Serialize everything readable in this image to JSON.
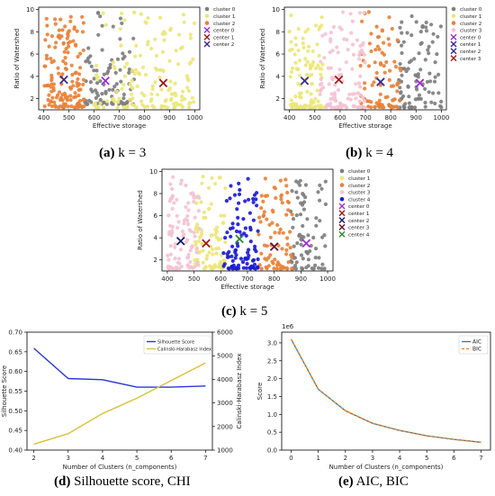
{
  "panels": {
    "a": {
      "letter": "(a)",
      "text": "k = 3"
    },
    "b": {
      "letter": "(b)",
      "text": "k = 4"
    },
    "c": {
      "letter": "(c)",
      "text": "k = 5"
    },
    "d": {
      "letter": "(d)",
      "text": "Silhouette score, CHI"
    },
    "e": {
      "letter": "(e)",
      "text": "AIC, BIC"
    }
  },
  "chart_data": [
    {
      "id": "a",
      "type": "scatter",
      "xlabel": "Effective storage",
      "ylabel": "Ratio of Watershed",
      "xlim": [
        380,
        1020
      ],
      "ylim": [
        1,
        10.2
      ],
      "xticks": [
        400,
        500,
        600,
        700,
        800,
        900,
        1000
      ],
      "yticks": [
        2,
        4,
        6,
        8,
        10
      ],
      "legend_position": "top-right",
      "clusters": [
        {
          "name": "cluster 0",
          "color": "#7f7f7f",
          "x_range": [
            560,
            760
          ],
          "y_range": [
            1.5,
            9.8
          ],
          "count": 95
        },
        {
          "name": "cluster 1",
          "color": "#ece67a",
          "x_range": [
            600,
            1000
          ],
          "y_range": [
            1.2,
            9.8
          ],
          "count": 150
        },
        {
          "name": "cluster 2",
          "color": "#e8823a",
          "x_range": [
            400,
            560
          ],
          "y_range": [
            1.2,
            9.5
          ],
          "count": 150
        }
      ],
      "centers": [
        {
          "name": "center 0",
          "color": "#9b30ce",
          "x": 645,
          "y": 3.6
        },
        {
          "name": "center 1",
          "color": "#9b1c1c",
          "x": 875,
          "y": 3.4
        },
        {
          "name": "center 2",
          "color": "#3a2a8a",
          "x": 480,
          "y": 3.7
        }
      ]
    },
    {
      "id": "b",
      "type": "scatter",
      "xlabel": "Effective storage",
      "ylabel": "Ratio of Watershed",
      "xlim": [
        380,
        1020
      ],
      "ylim": [
        1,
        10.2
      ],
      "xticks": [
        400,
        500,
        600,
        700,
        800,
        900,
        1000
      ],
      "yticks": [
        2,
        4,
        6,
        8,
        10
      ],
      "legend_position": "top-right",
      "clusters": [
        {
          "name": "cluster 0",
          "color": "#7f7f7f",
          "x_range": [
            830,
            1000
          ],
          "y_range": [
            1.2,
            9.5
          ],
          "count": 95
        },
        {
          "name": "cluster 1",
          "color": "#ece67a",
          "x_range": [
            400,
            540
          ],
          "y_range": [
            1.2,
            9.5
          ],
          "count": 110
        },
        {
          "name": "cluster 2",
          "color": "#e8823a",
          "x_range": [
            680,
            840
          ],
          "y_range": [
            1.2,
            9.8
          ],
          "count": 90
        },
        {
          "name": "cluster 3",
          "color": "#f4c2d4",
          "x_range": [
            520,
            700
          ],
          "y_range": [
            1.2,
            9.8
          ],
          "count": 110
        }
      ],
      "centers": [
        {
          "name": "center 0",
          "color": "#9b30ce",
          "x": 915,
          "y": 3.4
        },
        {
          "name": "center 1",
          "color": "#3a2a8a",
          "x": 460,
          "y": 3.6
        },
        {
          "name": "center 2",
          "color": "#3a2a8a",
          "x": 760,
          "y": 3.5
        },
        {
          "name": "center 3",
          "color": "#9b1c1c",
          "x": 595,
          "y": 3.7
        }
      ]
    },
    {
      "id": "c",
      "type": "scatter",
      "xlabel": "Effective storage",
      "ylabel": "Ratio of Watershed",
      "xlim": [
        380,
        1020
      ],
      "ylim": [
        1,
        10.2
      ],
      "xticks": [
        400,
        500,
        600,
        700,
        800,
        900,
        1000
      ],
      "yticks": [
        2,
        4,
        6,
        8,
        10
      ],
      "legend_position": "top-right",
      "clusters": [
        {
          "name": "cluster 0",
          "color": "#7f7f7f",
          "x_range": [
            860,
            1000
          ],
          "y_range": [
            1.2,
            9.2
          ],
          "count": 80
        },
        {
          "name": "cluster 1",
          "color": "#ece67a",
          "x_range": [
            500,
            620
          ],
          "y_range": [
            1.2,
            9.7
          ],
          "count": 90
        },
        {
          "name": "cluster 2",
          "color": "#e8823a",
          "x_range": [
            740,
            870
          ],
          "y_range": [
            1.2,
            9.8
          ],
          "count": 80
        },
        {
          "name": "cluster 3",
          "color": "#f4c2d4",
          "x_range": [
            400,
            520
          ],
          "y_range": [
            1.2,
            9.5
          ],
          "count": 95
        },
        {
          "name": "cluster 4",
          "color": "#1c1cd2",
          "x_range": [
            610,
            740
          ],
          "y_range": [
            1.2,
            9.5
          ],
          "count": 95
        }
      ],
      "centers": [
        {
          "name": "center 0",
          "color": "#9b30ce",
          "x": 920,
          "y": 3.5
        },
        {
          "name": "center 1",
          "color": "#9b1c1c",
          "x": 545,
          "y": 3.5
        },
        {
          "name": "center 2",
          "color": "#1a1a6a",
          "x": 450,
          "y": 3.7
        },
        {
          "name": "center 3",
          "color": "#6a1030",
          "x": 800,
          "y": 3.2
        },
        {
          "name": "center 4",
          "color": "#2e8b2e",
          "x": 670,
          "y": 3.9
        }
      ]
    },
    {
      "id": "d",
      "type": "line",
      "x": [
        2,
        3,
        4,
        5,
        6,
        7
      ],
      "xlabel": "Number of Clusters (n_components)",
      "ylabel": "Silhouette Score",
      "y2label": "Calinski-Harabasz Index",
      "xlim": [
        1.8,
        7.2
      ],
      "ylim": [
        0.4,
        0.7
      ],
      "y2lim": [
        1000,
        6000
      ],
      "yticks": [
        0.4,
        0.45,
        0.5,
        0.55,
        0.6,
        0.65,
        0.7
      ],
      "y2ticks": [
        1000,
        2000,
        3000,
        4000,
        5000,
        6000
      ],
      "legend_position": "top-right",
      "series": [
        {
          "name": "Silhouette Score",
          "axis": "left",
          "color": "#2b36d9",
          "values": [
            0.659,
            0.582,
            0.579,
            0.56,
            0.56,
            0.563
          ]
        },
        {
          "name": "Calinski-Harabasz Index",
          "axis": "right",
          "color": "#d9c03a",
          "values": [
            1250,
            1700,
            2550,
            3200,
            3950,
            4700
          ]
        }
      ]
    },
    {
      "id": "e",
      "type": "line",
      "x": [
        0,
        1,
        2,
        3,
        4,
        5,
        6,
        7
      ],
      "xlabel": "Number of Clusters (n_components)",
      "ylabel": "Score",
      "yscale_label": "1e6",
      "xlim": [
        -0.35,
        7.35
      ],
      "ylim": [
        0,
        3.3
      ],
      "yticks": [
        0.0,
        0.5,
        1.0,
        1.5,
        2.0,
        2.5,
        3.0
      ],
      "legend_position": "top-right",
      "series": [
        {
          "name": "AIC",
          "color": "#1f77b4",
          "values": [
            3.1,
            1.7,
            1.1,
            0.75,
            0.55,
            0.4,
            0.3,
            0.22
          ]
        },
        {
          "name": "BIC",
          "color": "#ff7f0e",
          "style": "dashed",
          "values": [
            3.1,
            1.7,
            1.1,
            0.75,
            0.55,
            0.4,
            0.3,
            0.22
          ]
        }
      ]
    }
  ]
}
